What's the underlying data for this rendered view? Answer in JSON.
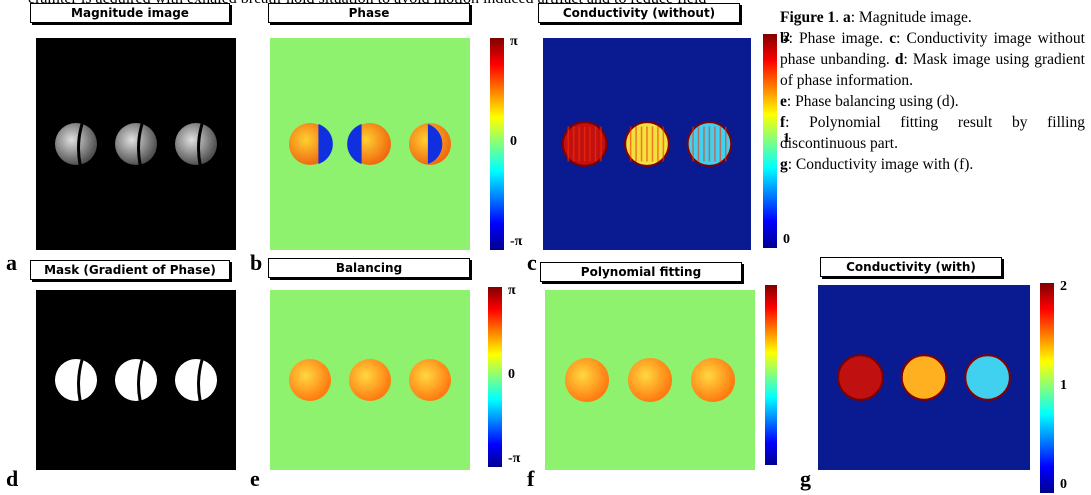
{
  "header": {
    "text": "eramter is acquired with exhaled breath-hold situation to avoid motion induced artifact and to reduce field"
  },
  "panels": [
    {
      "label": "a",
      "title": "Magnitude image",
      "colorbar_ticks": []
    },
    {
      "label": "b",
      "title": "Phase",
      "colorbar_ticks": [
        "π",
        "0",
        "-π"
      ]
    },
    {
      "label": "c",
      "title": "Conductivity (without)",
      "colorbar_ticks": [
        "2",
        "1",
        "0"
      ]
    },
    {
      "label": "d",
      "title": "Mask (Gradient of Phase)",
      "colorbar_ticks": []
    },
    {
      "label": "e",
      "title": "Balancing",
      "colorbar_ticks": [
        "π",
        "0",
        "-π"
      ]
    },
    {
      "label": "f",
      "title": "Polynomial fitting",
      "colorbar_ticks": []
    },
    {
      "label": "g",
      "title": "Conductivity (with)",
      "colorbar_ticks": [
        "2",
        "1",
        "0"
      ]
    }
  ],
  "caption": [
    {
      "text": "Figure 1",
      "bold": true
    },
    {
      "text": ". "
    },
    {
      "text": "a",
      "bold": true
    },
    {
      "text": ": Magnitude image. "
    },
    {
      "text": "b",
      "bold": true,
      "newline": true
    },
    {
      "text": ": Phase image. "
    },
    {
      "text": "c",
      "bold": true
    },
    {
      "text": ": Conductivity image without phase unbanding. "
    },
    {
      "text": "d",
      "bold": true
    },
    {
      "text": ": Mask image using gradient of phase information."
    },
    {
      "text": "e",
      "bold": true,
      "newline": true
    },
    {
      "text": ": Phase balancing using (d)."
    },
    {
      "text": "f",
      "bold": true,
      "newline": true
    },
    {
      "text": ": Polynomial fitting result by filling discontinuous part."
    },
    {
      "text": "g",
      "bold": true,
      "newline": true
    },
    {
      "text": ": Conductivity image with (f)."
    }
  ]
}
